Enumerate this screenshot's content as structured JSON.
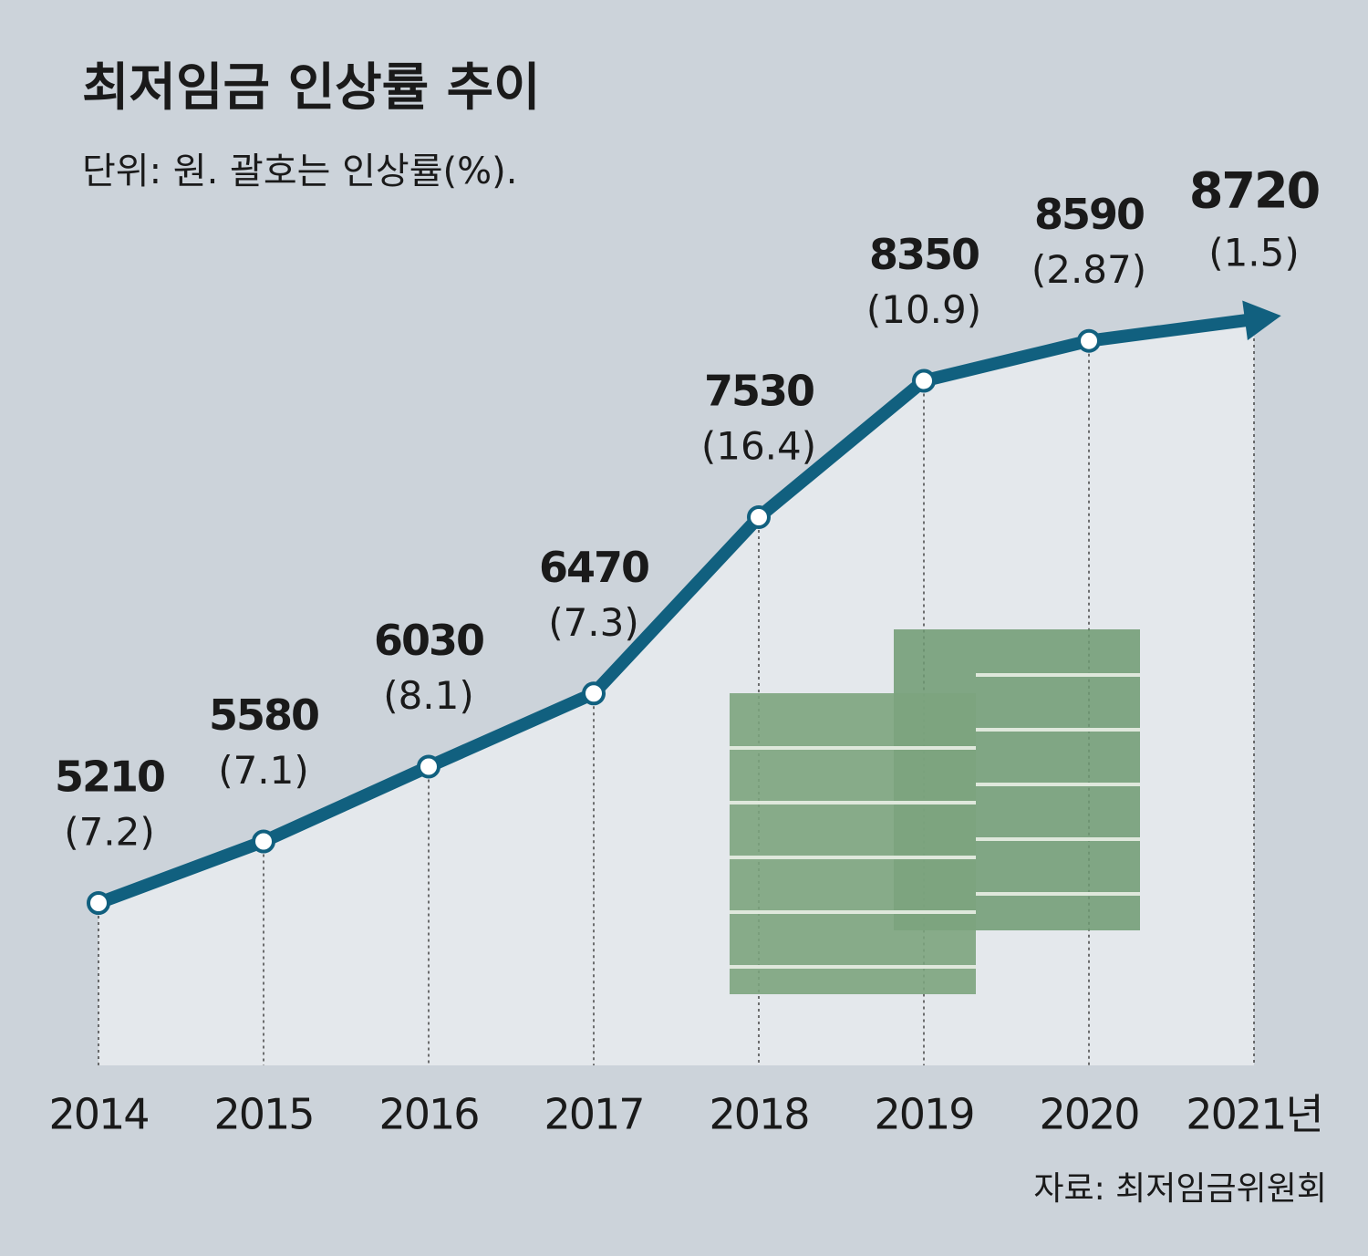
{
  "chart_data": {
    "type": "line",
    "title": "최저임금 인상률 추이",
    "subtitle": "단위: 원. 괄호는 인상률(%).",
    "source": "자료: 최저임금위원회",
    "categories": [
      "2014",
      "2015",
      "2016",
      "2017",
      "2018",
      "2019",
      "2020",
      "2021년"
    ],
    "values": [
      5210,
      5580,
      6030,
      6470,
      7530,
      8350,
      8590,
      8720
    ],
    "increase_rates": {
      "values": [
        7.2,
        7.1,
        8.1,
        7.3,
        16.4,
        10.9,
        2.87,
        1.5
      ],
      "value_labels": [
        "(7.2)",
        "(7.1)",
        "(8.1)",
        "(7.3)",
        "(16.4)",
        "(10.9)",
        "(2.87)",
        "(1.5)"
      ]
    },
    "color": "#11607f"
  }
}
